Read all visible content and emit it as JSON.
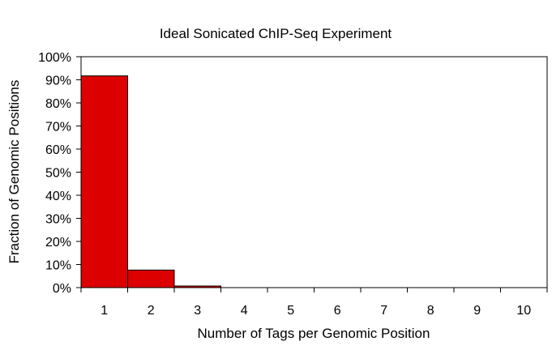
{
  "chart_data": {
    "type": "bar",
    "title": "Ideal Sonicated ChIP-Seq Experiment",
    "xlabel": "Number of Tags per Genomic Position",
    "ylabel": "Fraction of Genomic Positions",
    "categories": [
      "1",
      "2",
      "3",
      "4",
      "5",
      "6",
      "7",
      "8",
      "9",
      "10"
    ],
    "values": [
      0.917,
      0.076,
      0.007,
      0,
      0,
      0,
      0,
      0,
      0,
      0
    ],
    "ylim": [
      0,
      1
    ],
    "yticks": [
      0,
      0.1,
      0.2,
      0.3,
      0.4,
      0.5,
      0.6,
      0.7,
      0.8,
      0.9,
      1.0
    ],
    "ytick_labels": [
      "0%",
      "10%",
      "20%",
      "30%",
      "40%",
      "50%",
      "60%",
      "70%",
      "80%",
      "90%",
      "100%"
    ],
    "grid": false,
    "bar_color": "#dd0000",
    "bar_edge_color": "#000000"
  }
}
